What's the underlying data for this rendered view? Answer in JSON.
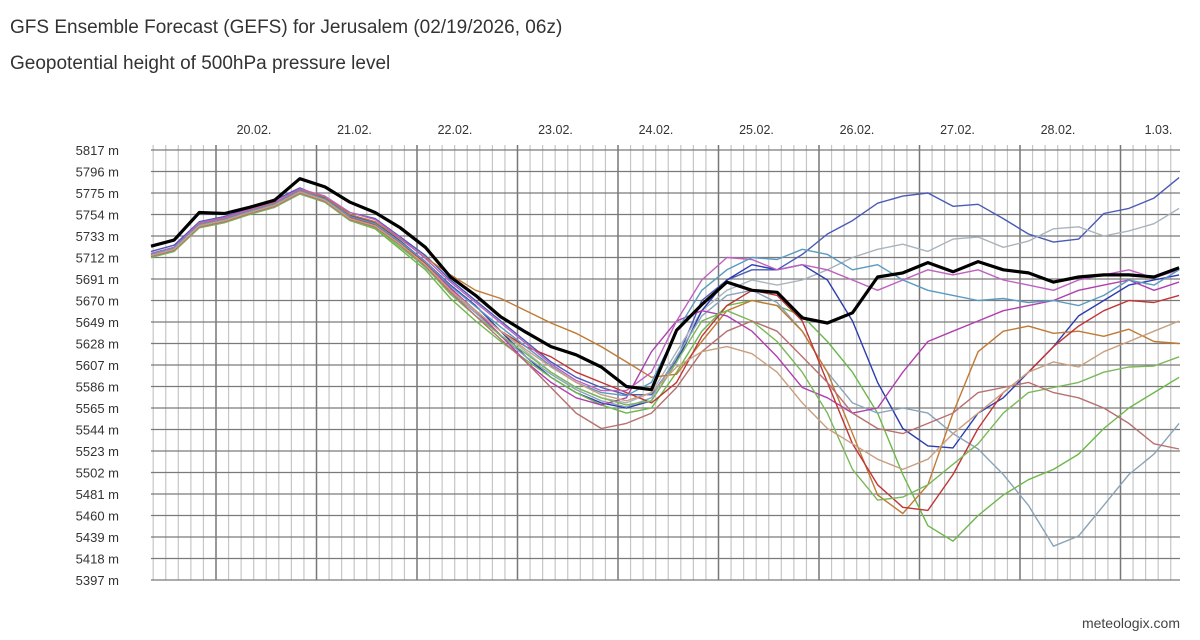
{
  "header": {
    "title": "GFS Ensemble Forecast (GEFS) for Jerusalem (02/19/2026, 06z)",
    "subtitle": "Geopotential height of 500hPa pressure level"
  },
  "footer": {
    "credit": "meteologix.com"
  },
  "chart_data": {
    "type": "line",
    "title": "GFS Ensemble Forecast (GEFS) for Jerusalem (02/19/2026, 06z)",
    "subtitle": "Geopotential height of 500hPa pressure level",
    "xlabel": "",
    "ylabel": "",
    "ylim": [
      5397,
      5817
    ],
    "y_ticks": [
      "5817 m",
      "5796 m",
      "5775 m",
      "5754 m",
      "5733 m",
      "5712 m",
      "5691 m",
      "5670 m",
      "5649 m",
      "5628 m",
      "5607 m",
      "5586 m",
      "5565 m",
      "5544 m",
      "5523 m",
      "5502 m",
      "5481 m",
      "5460 m",
      "5439 m",
      "5418 m",
      "5397 m"
    ],
    "x_ticks": [
      {
        "label": "20.02.",
        "date": "2026-02-20"
      },
      {
        "label": "21.02.",
        "date": "2026-02-21"
      },
      {
        "label": "22.02.",
        "date": "2026-02-22"
      },
      {
        "label": "23.02.",
        "date": "2026-02-23"
      },
      {
        "label": "24.02.",
        "date": "2026-02-24"
      },
      {
        "label": "25.02.",
        "date": "2026-02-25"
      },
      {
        "label": "26.02.",
        "date": "2026-02-26"
      },
      {
        "label": "27.02.",
        "date": "2026-02-27"
      },
      {
        "label": "28.02.",
        "date": "2026-02-28"
      },
      {
        "label": "1.03.",
        "date": "2026-03-01"
      }
    ],
    "xlim": [
      "2026-02-19T08:00",
      "2026-03-01T14:00"
    ],
    "grid": true,
    "legend": "none",
    "x": [
      "2026-02-19T08:00",
      "2026-02-19T14:00",
      "2026-02-19T20:00",
      "2026-02-20T02:00",
      "2026-02-20T08:00",
      "2026-02-20T14:00",
      "2026-02-20T20:00",
      "2026-02-21T02:00",
      "2026-02-21T08:00",
      "2026-02-21T14:00",
      "2026-02-21T20:00",
      "2026-02-22T02:00",
      "2026-02-22T08:00",
      "2026-02-22T14:00",
      "2026-02-22T20:00",
      "2026-02-23T02:00",
      "2026-02-23T08:00",
      "2026-02-23T14:00",
      "2026-02-23T20:00",
      "2026-02-24T02:00",
      "2026-02-24T08:00",
      "2026-02-24T14:00",
      "2026-02-24T20:00",
      "2026-02-25T02:00",
      "2026-02-25T08:00",
      "2026-02-25T14:00",
      "2026-02-25T20:00",
      "2026-02-26T02:00",
      "2026-02-26T08:00",
      "2026-02-26T14:00",
      "2026-02-26T20:00",
      "2026-02-27T02:00",
      "2026-02-27T08:00",
      "2026-02-27T14:00",
      "2026-02-27T20:00",
      "2026-02-28T02:00",
      "2026-02-28T08:00",
      "2026-02-28T14:00",
      "2026-02-28T20:00",
      "2026-03-01T02:00",
      "2026-03-01T08:00",
      "2026-03-01T14:00"
    ],
    "members": [
      {
        "color": "#4a5ab8",
        "values": [
          5718,
          5724,
          5747,
          5752,
          5760,
          5768,
          5780,
          5770,
          5756,
          5750,
          5732,
          5714,
          5690,
          5670,
          5650,
          5630,
          5610,
          5595,
          5585,
          5578,
          5578,
          5612,
          5670,
          5690,
          5700,
          5700,
          5715,
          5735,
          5748,
          5765,
          5772,
          5775,
          5762,
          5764,
          5750,
          5735,
          5727,
          5730,
          5755,
          5760,
          5770,
          5790
        ]
      },
      {
        "color": "#aab4bc",
        "values": [
          5714,
          5720,
          5743,
          5748,
          5756,
          5763,
          5776,
          5768,
          5750,
          5744,
          5726,
          5705,
          5680,
          5660,
          5640,
          5620,
          5600,
          5585,
          5575,
          5570,
          5580,
          5620,
          5660,
          5680,
          5690,
          5685,
          5690,
          5700,
          5712,
          5720,
          5725,
          5718,
          5730,
          5732,
          5722,
          5728,
          5740,
          5742,
          5733,
          5738,
          5745,
          5760
        ]
      },
      {
        "color": "#2c3cb0",
        "values": [
          5715,
          5721,
          5744,
          5749,
          5757,
          5764,
          5777,
          5770,
          5753,
          5746,
          5728,
          5708,
          5685,
          5665,
          5640,
          5615,
          5595,
          5580,
          5570,
          5565,
          5572,
          5610,
          5660,
          5690,
          5705,
          5700,
          5705,
          5690,
          5650,
          5590,
          5545,
          5528,
          5526,
          5560,
          5575,
          5600,
          5625,
          5655,
          5670,
          5685,
          5690,
          5695
        ]
      },
      {
        "color": "#6cb84a",
        "values": [
          5712,
          5718,
          5741,
          5746,
          5754,
          5761,
          5774,
          5766,
          5748,
          5740,
          5720,
          5700,
          5672,
          5650,
          5630,
          5612,
          5595,
          5580,
          5568,
          5560,
          5565,
          5600,
          5640,
          5665,
          5670,
          5665,
          5655,
          5630,
          5600,
          5560,
          5500,
          5450,
          5435,
          5460,
          5480,
          5495,
          5505,
          5520,
          5545,
          5565,
          5580,
          5595
        ]
      },
      {
        "color": "#8aa4b8",
        "values": [
          5713,
          5719,
          5742,
          5747,
          5755,
          5762,
          5775,
          5767,
          5750,
          5742,
          5724,
          5702,
          5678,
          5658,
          5635,
          5615,
          5598,
          5583,
          5572,
          5566,
          5575,
          5615,
          5655,
          5675,
          5680,
          5668,
          5640,
          5600,
          5570,
          5560,
          5565,
          5560,
          5540,
          5525,
          5500,
          5470,
          5430,
          5440,
          5470,
          5500,
          5520,
          5550
        ]
      },
      {
        "color": "#c07a34",
        "values": [
          5716,
          5722,
          5745,
          5750,
          5758,
          5765,
          5778,
          5771,
          5754,
          5747,
          5730,
          5712,
          5695,
          5680,
          5672,
          5660,
          5648,
          5638,
          5625,
          5610,
          5595,
          5598,
          5630,
          5660,
          5670,
          5665,
          5640,
          5600,
          5540,
          5480,
          5462,
          5490,
          5560,
          5620,
          5640,
          5645,
          5638,
          5640,
          5635,
          5642,
          5630,
          5628
        ]
      },
      {
        "color": "#b040b0",
        "values": [
          5715,
          5721,
          5744,
          5749,
          5757,
          5764,
          5777,
          5769,
          5752,
          5745,
          5727,
          5708,
          5682,
          5660,
          5636,
          5610,
          5590,
          5575,
          5568,
          5575,
          5620,
          5650,
          5660,
          5655,
          5640,
          5615,
          5585,
          5575,
          5560,
          5565,
          5600,
          5630,
          5640,
          5650,
          5660,
          5665,
          5670,
          5680,
          5685,
          5690,
          5680,
          5688
        ]
      },
      {
        "color": "#c03636",
        "values": [
          5714,
          5720,
          5743,
          5748,
          5756,
          5764,
          5776,
          5768,
          5751,
          5744,
          5726,
          5706,
          5680,
          5660,
          5640,
          5625,
          5615,
          5600,
          5590,
          5580,
          5570,
          5590,
          5635,
          5665,
          5680,
          5675,
          5650,
          5590,
          5530,
          5490,
          5468,
          5465,
          5500,
          5545,
          5580,
          5600,
          5625,
          5645,
          5660,
          5670,
          5668,
          5675
        ]
      },
      {
        "color": "#7ab85a",
        "values": [
          5712,
          5718,
          5741,
          5746,
          5754,
          5761,
          5774,
          5766,
          5748,
          5741,
          5722,
          5703,
          5676,
          5655,
          5636,
          5618,
          5600,
          5585,
          5575,
          5568,
          5572,
          5610,
          5650,
          5660,
          5650,
          5630,
          5600,
          5560,
          5505,
          5475,
          5478,
          5490,
          5510,
          5530,
          5560,
          5580,
          5585,
          5590,
          5600,
          5605,
          5606,
          5615
        ]
      },
      {
        "color": "#b87070",
        "values": [
          5713,
          5719,
          5742,
          5747,
          5755,
          5762,
          5775,
          5767,
          5749,
          5742,
          5724,
          5704,
          5678,
          5655,
          5632,
          5610,
          5585,
          5560,
          5545,
          5550,
          5560,
          5585,
          5620,
          5640,
          5650,
          5640,
          5615,
          5590,
          5560,
          5545,
          5540,
          5550,
          5560,
          5580,
          5585,
          5590,
          5580,
          5575,
          5565,
          5550,
          5530,
          5525
        ]
      },
      {
        "color": "#c060c0",
        "values": [
          5716,
          5722,
          5746,
          5751,
          5759,
          5766,
          5779,
          5772,
          5756,
          5749,
          5731,
          5711,
          5688,
          5668,
          5648,
          5628,
          5608,
          5592,
          5582,
          5582,
          5600,
          5650,
          5690,
          5712,
          5710,
          5700,
          5705,
          5700,
          5690,
          5680,
          5690,
          5700,
          5695,
          5700,
          5690,
          5685,
          5680,
          5690,
          5695,
          5700,
          5692,
          5700
        ]
      },
      {
        "color": "#5a9ac0",
        "values": [
          5715,
          5721,
          5744,
          5749,
          5757,
          5764,
          5777,
          5769,
          5752,
          5745,
          5727,
          5708,
          5684,
          5664,
          5644,
          5625,
          5606,
          5590,
          5580,
          5577,
          5590,
          5640,
          5680,
          5700,
          5712,
          5710,
          5720,
          5715,
          5700,
          5705,
          5690,
          5680,
          5675,
          5670,
          5672,
          5668,
          5670,
          5665,
          5675,
          5690,
          5685,
          5700
        ]
      },
      {
        "color": "#c8a080",
        "values": [
          5714,
          5720,
          5743,
          5748,
          5756,
          5763,
          5776,
          5768,
          5750,
          5743,
          5725,
          5705,
          5680,
          5660,
          5640,
          5622,
          5605,
          5590,
          5578,
          5572,
          5580,
          5605,
          5620,
          5625,
          5618,
          5600,
          5570,
          5545,
          5530,
          5515,
          5505,
          5515,
          5540,
          5560,
          5580,
          5600,
          5610,
          5605,
          5620,
          5630,
          5640,
          5650
        ]
      }
    ],
    "main": {
      "color": "#000000",
      "values": [
        5723,
        5729,
        5756,
        5755,
        5761,
        5768,
        5789,
        5781,
        5766,
        5756,
        5741,
        5722,
        5693,
        5675,
        5654,
        5639,
        5625,
        5617,
        5605,
        5586,
        5583,
        5641,
        5666,
        5688,
        5680,
        5678,
        5653,
        5648,
        5658,
        5693,
        5697,
        5707,
        5698,
        5708,
        5700,
        5697,
        5688,
        5693,
        5695,
        5695,
        5693,
        5702
      ]
    }
  }
}
